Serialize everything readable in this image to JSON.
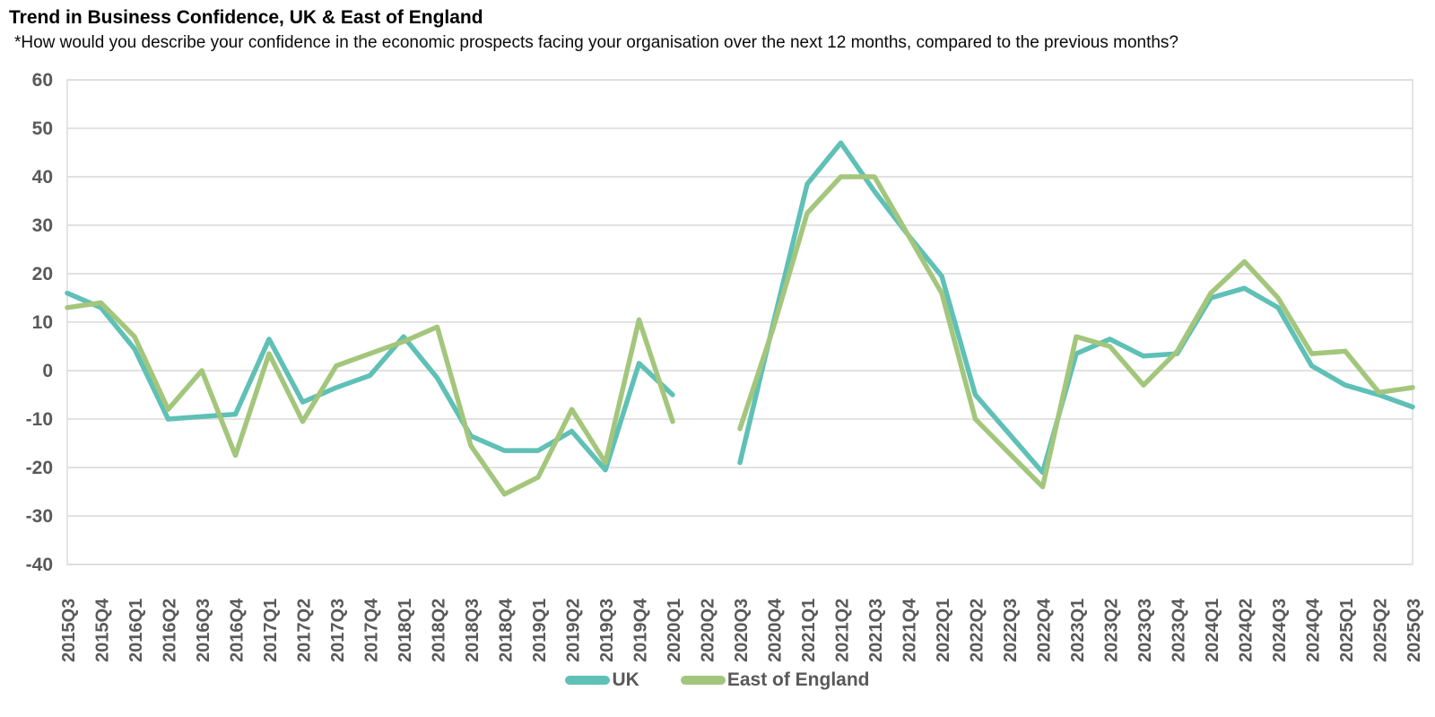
{
  "header": {
    "title": "Trend in Business Confidence, UK & East of England",
    "subtitle": "*How would you describe your confidence in the economic prospects facing your organisation over the next 12 months, compared to the previous months?"
  },
  "chart_data": {
    "type": "line",
    "title": "Trend in Business Confidence, UK & East of England",
    "xlabel": "",
    "ylabel": "",
    "ylim": [
      -40,
      60
    ],
    "yticks": [
      60,
      50,
      40,
      30,
      20,
      10,
      0,
      -10,
      -20,
      -30,
      -40
    ],
    "grid": "horizontal",
    "legend_position": "bottom",
    "gap_note": "2020Q2 has no data (lines break)",
    "categories": [
      "2015Q3",
      "2015Q4",
      "2016Q1",
      "2016Q2",
      "2016Q3",
      "2016Q4",
      "2017Q1",
      "2017Q2",
      "2017Q3",
      "2017Q4",
      "2018Q1",
      "2018Q2",
      "2018Q3",
      "2018Q4",
      "2019Q1",
      "2019Q2",
      "2019Q3",
      "2019Q4",
      "2020Q1",
      "2020Q2",
      "2020Q3",
      "2020Q4",
      "2021Q1",
      "2021Q2",
      "2021Q3",
      "2021Q4",
      "2022Q1",
      "2022Q2",
      "2022Q3",
      "2022Q4",
      "2023Q1",
      "2023Q2",
      "2023Q3",
      "2023Q4",
      "2024Q1",
      "2024Q2",
      "2024Q3",
      "2024Q4",
      "2025Q1",
      "2025Q2",
      "2025Q3"
    ],
    "series": [
      {
        "name": "UK",
        "color": "#5FC0B6",
        "values": [
          16,
          13,
          4.5,
          -10,
          -9.5,
          -9,
          6.5,
          -6.5,
          -3.5,
          -1,
          7,
          -1.5,
          -13.5,
          -16.5,
          -16.5,
          -12.5,
          -20.5,
          1.5,
          -5,
          null,
          -19,
          10,
          38.5,
          47,
          37,
          28,
          19.5,
          -5,
          -13,
          -21,
          3.5,
          6.5,
          3,
          3.5,
          15,
          17,
          13,
          1,
          -3,
          -5,
          -7.5
        ]
      },
      {
        "name": "East of England",
        "color": "#A3C67C",
        "values": [
          13,
          14,
          7,
          -8,
          0,
          -17.5,
          3.5,
          -10.5,
          1,
          3.5,
          6,
          9,
          -15.5,
          -25.5,
          -22,
          -8,
          -19,
          10.5,
          -10.5,
          null,
          -12,
          9,
          32.5,
          40,
          40,
          28,
          16,
          -10,
          -17,
          -24,
          7,
          5,
          -3,
          4,
          16,
          22.5,
          15,
          3.5,
          4,
          -4.5,
          -3.5
        ]
      }
    ],
    "colors": {
      "axis_text": "#595959",
      "gridline": "#D9D9D9",
      "uk_line": "#5FC0B6",
      "east_of_england_line": "#A3C67C"
    }
  },
  "legend": {
    "items": [
      {
        "label": "UK"
      },
      {
        "label": "East of England"
      }
    ]
  }
}
